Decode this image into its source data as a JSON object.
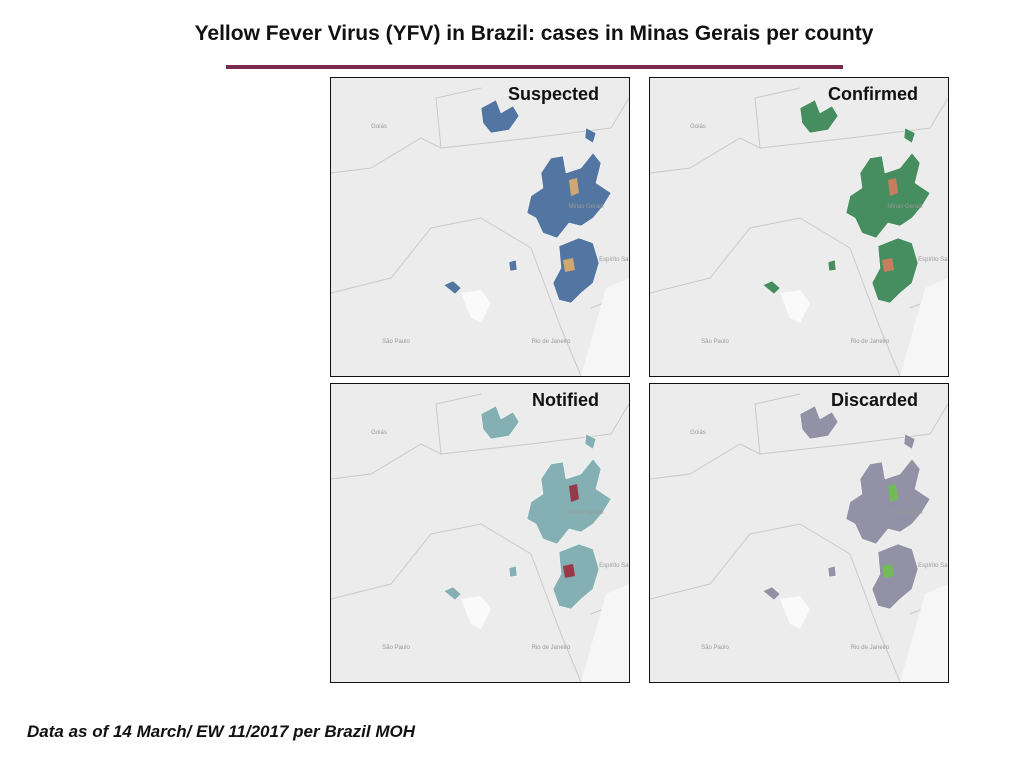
{
  "header": {
    "title": "Yellow Fever Virus (YFV) in Brazil: cases in Minas Gerais per county"
  },
  "panels": [
    {
      "label": "Suspected",
      "color": "#4a6f9e",
      "accent": "#e8b06a"
    },
    {
      "label": "Confirmed",
      "color": "#3e8a58",
      "accent": "#e07a5f"
    },
    {
      "label": "Notified",
      "color": "#7fadb2",
      "accent": "#9b2335"
    },
    {
      "label": "Discarded",
      "color": "#8e8da3",
      "accent": "#6cc24a"
    }
  ],
  "map_labels": [
    "Goiás",
    "Minas Gerais",
    "Espírito Santo",
    "São Paulo",
    "Rio de Janeiro"
  ],
  "footer": {
    "note": "Data as of 14 March/ EW 11/2017 per Brazil MOH"
  }
}
